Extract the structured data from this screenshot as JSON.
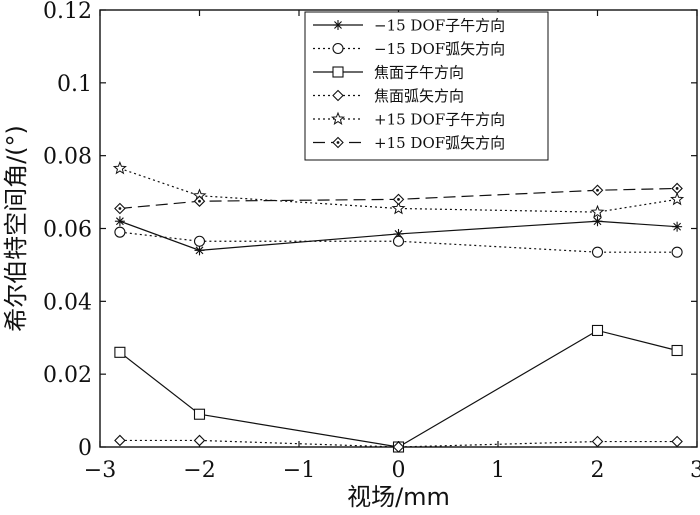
{
  "chart_data": {
    "type": "line",
    "xlabel": "视场/mm",
    "ylabel": "希尔伯特空间角/(°)",
    "xlim": [
      -3,
      3
    ],
    "ylim": [
      0,
      0.12
    ],
    "xticks": [
      -3,
      -2,
      -1,
      0,
      1,
      2,
      3
    ],
    "xtick_labels": [
      "−3",
      "−2",
      "−1",
      "0",
      "1",
      "2",
      "3"
    ],
    "yticks": [
      0,
      0.02,
      0.04,
      0.06,
      0.08,
      0.1,
      0.12
    ],
    "ytick_labels": [
      "0",
      "0.02",
      "0.04",
      "0.06",
      "0.08",
      "0.1",
      "0.12"
    ],
    "grid": false,
    "legend_position": "top-right",
    "x": [
      -2.8,
      -2,
      0,
      2,
      2.8
    ],
    "series": [
      {
        "name": "−15 DOF子午方向",
        "values": [
          0.062,
          0.054,
          0.0585,
          0.062,
          0.0605
        ],
        "marker": "asterisk",
        "dash": "solid"
      },
      {
        "name": "−15 DOF弧矢方向",
        "values": [
          0.059,
          0.0565,
          0.0565,
          0.0535,
          0.0535
        ],
        "marker": "circle",
        "dash": "dotted"
      },
      {
        "name": "焦面子午方向",
        "values": [
          0.026,
          0.009,
          0.0,
          0.032,
          0.0265
        ],
        "marker": "square",
        "dash": "solid"
      },
      {
        "name": "焦面弧矢方向",
        "values": [
          0.0018,
          0.0018,
          0.0,
          0.0015,
          0.0015
        ],
        "marker": "diamond",
        "dash": "dotted"
      },
      {
        "name": "+15 DOF子午方向",
        "values": [
          0.0765,
          0.069,
          0.0655,
          0.0645,
          0.068
        ],
        "marker": "star",
        "dash": "dotted"
      },
      {
        "name": "+15 DOF弧矢方向",
        "values": [
          0.0655,
          0.0675,
          0.068,
          0.0705,
          0.071
        ],
        "marker": "diamond-dot",
        "dash": "dashed"
      }
    ]
  }
}
